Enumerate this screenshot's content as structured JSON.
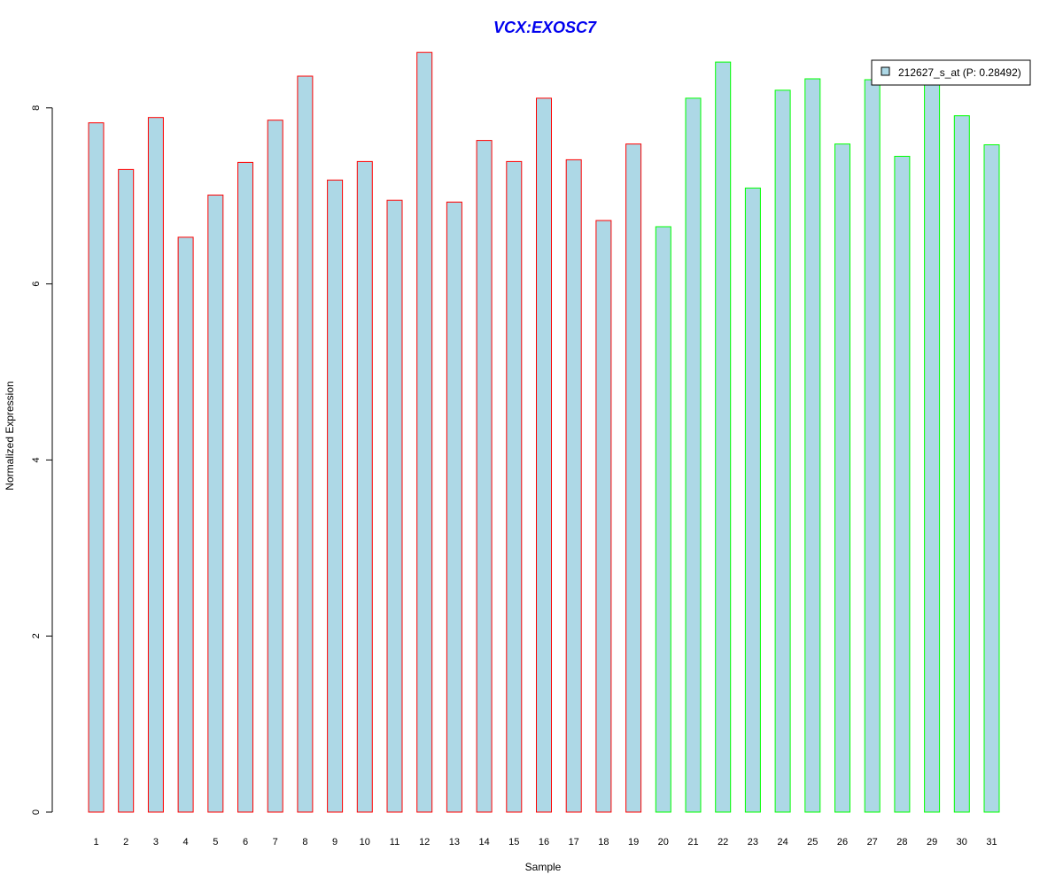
{
  "chart_data": {
    "type": "bar",
    "title": "VCX:EXOSC7",
    "xlabel": "Sample",
    "ylabel": "Normalized Expression",
    "categories": [
      "1",
      "2",
      "3",
      "4",
      "5",
      "6",
      "7",
      "8",
      "9",
      "10",
      "11",
      "12",
      "13",
      "14",
      "15",
      "16",
      "17",
      "18",
      "19",
      "20",
      "21",
      "22",
      "23",
      "24",
      "25",
      "26",
      "27",
      "28",
      "29",
      "30",
      "31"
    ],
    "series": [
      {
        "name": "212627_s_at (P: 0.28492)",
        "values": [
          7.83,
          7.3,
          7.89,
          6.53,
          7.01,
          7.38,
          7.86,
          8.36,
          7.18,
          7.39,
          6.95,
          8.63,
          6.93,
          7.63,
          7.39,
          8.11,
          7.41,
          6.72,
          7.59,
          6.65,
          8.11,
          8.52,
          7.09,
          8.2,
          8.33,
          7.59,
          8.32,
          7.45,
          8.3,
          7.91,
          7.58
        ]
      }
    ],
    "groups": [
      {
        "from": 1,
        "to": 19,
        "border_color": "#ff0000"
      },
      {
        "from": 20,
        "to": 31,
        "border_color": "#00ff00"
      }
    ],
    "bar_fill": "#add8e6",
    "title_color": "#0000ee",
    "ylim": [
      0,
      8.8
    ],
    "yticks": [
      0,
      2,
      4,
      6,
      8
    ],
    "legend_position": "top-right",
    "grid": false
  }
}
